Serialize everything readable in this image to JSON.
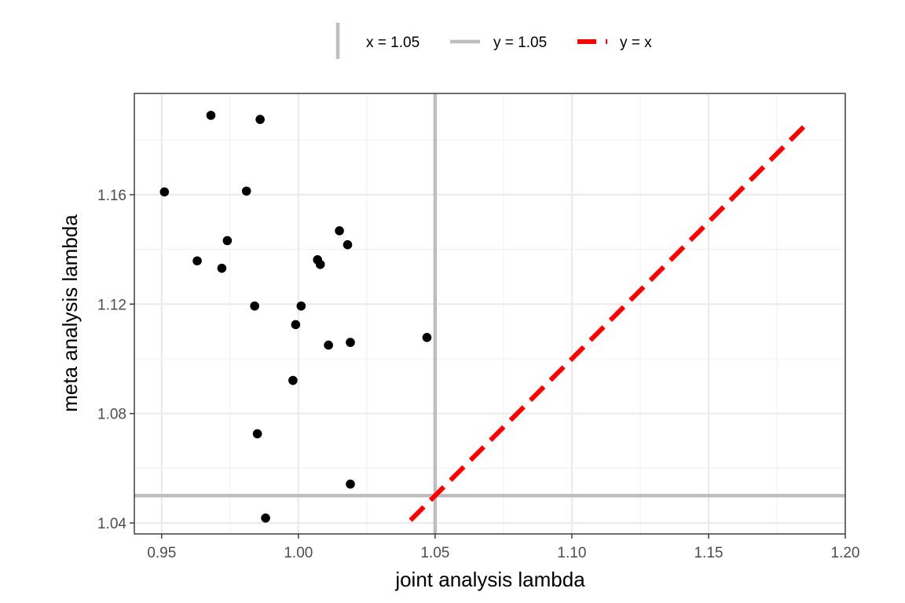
{
  "chart_data": {
    "type": "scatter",
    "xlabel": "joint analysis lambda",
    "ylabel": "meta analysis lambda",
    "xlim": [
      0.94,
      1.2
    ],
    "ylim": [
      1.036,
      1.197
    ],
    "x_ticks": [
      0.95,
      1.0,
      1.05,
      1.1,
      1.15,
      1.2
    ],
    "x_tick_labels": [
      "0.95",
      "1.00",
      "1.05",
      "1.10",
      "1.15",
      "1.20"
    ],
    "y_ticks": [
      1.04,
      1.08,
      1.12,
      1.16
    ],
    "y_tick_labels": [
      "1.04",
      "1.08",
      "1.12",
      "1.16"
    ],
    "grid": true,
    "legend_position": "top",
    "points": [
      {
        "x": 0.968,
        "y": 1.189
      },
      {
        "x": 0.986,
        "y": 1.1875
      },
      {
        "x": 0.951,
        "y": 1.161
      },
      {
        "x": 0.981,
        "y": 1.1613
      },
      {
        "x": 0.974,
        "y": 1.1432
      },
      {
        "x": 0.963,
        "y": 1.1358
      },
      {
        "x": 0.972,
        "y": 1.1331
      },
      {
        "x": 1.015,
        "y": 1.1468
      },
      {
        "x": 1.018,
        "y": 1.1417
      },
      {
        "x": 1.007,
        "y": 1.1362
      },
      {
        "x": 1.008,
        "y": 1.1345
      },
      {
        "x": 0.984,
        "y": 1.1193
      },
      {
        "x": 1.001,
        "y": 1.1193
      },
      {
        "x": 0.999,
        "y": 1.1125
      },
      {
        "x": 1.011,
        "y": 1.105
      },
      {
        "x": 1.019,
        "y": 1.106
      },
      {
        "x": 1.047,
        "y": 1.1078
      },
      {
        "x": 0.998,
        "y": 1.0921
      },
      {
        "x": 0.985,
        "y": 1.0726
      },
      {
        "x": 1.019,
        "y": 1.0542
      },
      {
        "x": 0.988,
        "y": 1.0418
      }
    ],
    "point_color": "#000000",
    "reference_lines": [
      {
        "name": "x = 1.05",
        "kind": "vertical",
        "value": 1.05,
        "color": "#bebebe",
        "dash": "solid"
      },
      {
        "name": "y = 1.05",
        "kind": "horizontal",
        "value": 1.05,
        "color": "#bebebe",
        "dash": "solid"
      },
      {
        "name": "y = x",
        "kind": "identity",
        "from": 1.041,
        "to": 1.186,
        "color": "#ff0000",
        "dash": "dashed"
      }
    ]
  }
}
